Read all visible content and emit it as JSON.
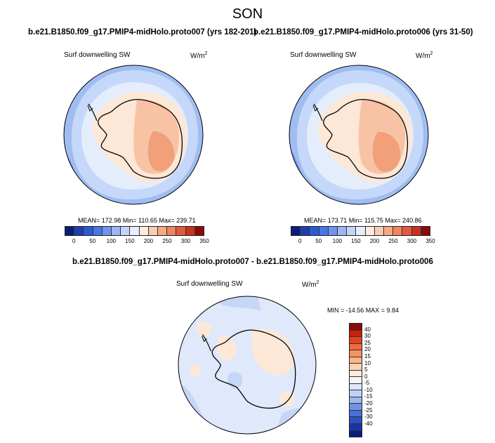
{
  "title": "SON",
  "panels": [
    {
      "case_title": "b.e21.B1850.f09_g17.PMIP4-midHolo.proto007 (yrs 182-201)",
      "variable": "Surf downwelling SW",
      "units_base": "W/m",
      "units_exp": "2",
      "stats": "MEAN= 172.98  Min= 110.65  Max= 239.71"
    },
    {
      "case_title": "b.e21.B1850.f09_g17.PMIP4-midHolo.proto006 (yrs 31-50)",
      "variable": "Surf downwelling SW",
      "units_base": "W/m",
      "units_exp": "2",
      "stats": "MEAN= 173.71  Min= 115.75  Max= 240.86"
    }
  ],
  "abs_colorbar": {
    "colors": [
      "#0a1e78",
      "#1f3fb0",
      "#2b5ad6",
      "#4677e6",
      "#6f95ee",
      "#9ab6f4",
      "#c2d5f8",
      "#e6eefb",
      "#fdebe0",
      "#f9cdb3",
      "#f4ab86",
      "#ee8460",
      "#e35a3c",
      "#c83220",
      "#8c0a0a"
    ],
    "ticks": [
      "0",
      "50",
      "100",
      "150",
      "200",
      "250",
      "300",
      "350"
    ]
  },
  "diff": {
    "title": "b.e21.B1850.f09_g17.PMIP4-midHolo.proto007 - b.e21.B1850.f09_g17.PMIP4-midHolo.proto006",
    "variable": "Surf downwelling SW",
    "units_base": "W/m",
    "units_exp": "2",
    "stats": "MIN = -14.56 MAX =   9.84"
  },
  "diff_colorbar": {
    "colors": [
      "#8c0a0a",
      "#c8200e",
      "#e8401e",
      "#f46a3c",
      "#f8935f",
      "#fbb488",
      "#fdd2b4",
      "#ffeadb",
      "#f4f6ff",
      "#dce7fb",
      "#c0d3f6",
      "#9bb8ef",
      "#6f93e4",
      "#4a70d8",
      "#2c50c4",
      "#1834a6",
      "#0a1e78"
    ],
    "ticks": [
      "40",
      "30",
      "25",
      "20",
      "15",
      "10",
      "5",
      "0",
      "-5",
      "-10",
      "-15",
      "-20",
      "-25",
      "-30",
      "-40"
    ]
  },
  "map_colors": {
    "ocean_outer": "#9fbdf2",
    "ocean_mid": "#c5d8f9",
    "ocean_inner": "#e4edfb",
    "deep_blue": "#6f93ea",
    "land_low": "#fde7d6",
    "land_mid": "#f8c3a4",
    "land_high": "#f1a07a",
    "diff_base": "#dfe9fb",
    "diff_pos": "#fde8d8",
    "diff_neg": "#c5d6f6"
  }
}
